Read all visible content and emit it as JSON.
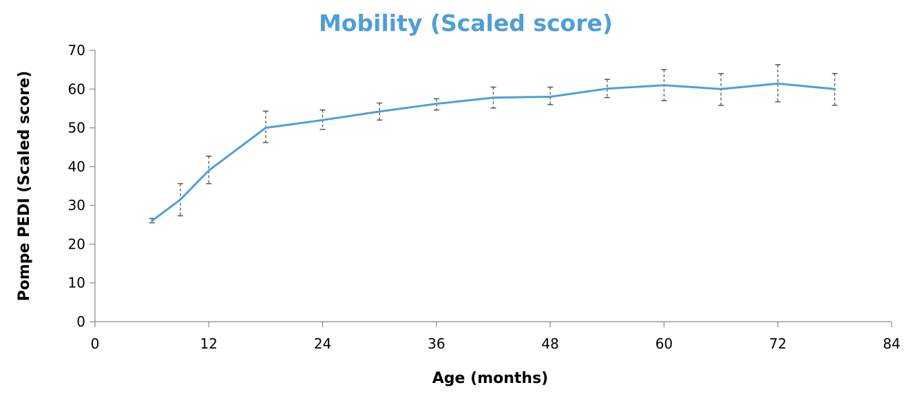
{
  "chart_data": {
    "type": "line",
    "title": "Mobility (Scaled score)",
    "xlabel": "Age (months)",
    "ylabel": "Pompe PEDI (Scaled score)",
    "xlim": [
      0,
      84
    ],
    "ylim": [
      0,
      70
    ],
    "xticks": [
      0,
      12,
      24,
      36,
      48,
      60,
      72,
      84
    ],
    "yticks": [
      0,
      10,
      20,
      30,
      40,
      50,
      60,
      70
    ],
    "grid": false,
    "line_color": "#4f9fd6",
    "errorbar_color": "#555555",
    "series": [
      {
        "x": [
          6,
          9,
          12,
          18,
          24,
          30,
          36,
          42,
          48,
          54,
          60,
          66,
          72,
          78
        ],
        "y": [
          26.0,
          31.5,
          39.0,
          50.0,
          52.0,
          54.2,
          56.2,
          57.8,
          58.0,
          60.1,
          61.0,
          60.0,
          61.4,
          60.0
        ],
        "y_upper": [
          26.6,
          35.6,
          42.7,
          54.3,
          54.6,
          56.4,
          57.5,
          60.5,
          60.5,
          62.5,
          65.0,
          64.0,
          66.3,
          64.0
        ],
        "y_lower": [
          25.5,
          27.3,
          35.6,
          46.2,
          49.6,
          52.0,
          54.6,
          55.1,
          56.0,
          57.8,
          57.0,
          55.8,
          56.7,
          55.8
        ]
      }
    ]
  }
}
